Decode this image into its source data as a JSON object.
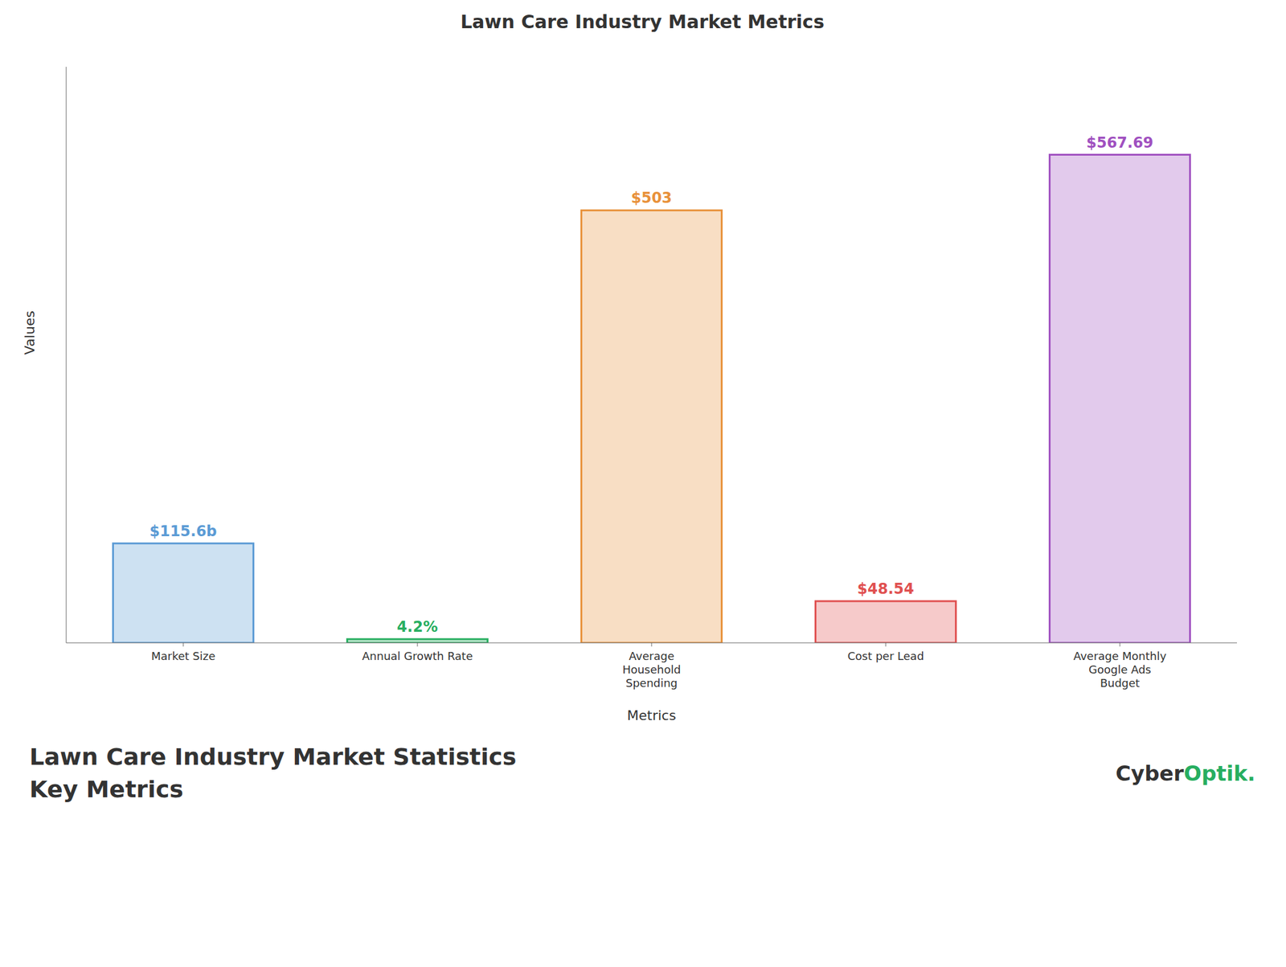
{
  "chart_data": {
    "type": "bar",
    "title": "Lawn Care Industry Market Metrics",
    "x_label": "Metrics",
    "y_label": "Values",
    "categories": [
      "Market Size",
      "Annual Growth Rate",
      "Average\nHousehold\nSpending",
      "Cost per Lead",
      "Average Monthly\nGoogle Ads\nBudget"
    ],
    "values": [
      115.6,
      4.2,
      503,
      48.54,
      567.69
    ],
    "value_labels": [
      "$115.6b",
      "4.2%",
      "$503",
      "$48.54",
      "$567.69"
    ],
    "data_labels": true,
    "colors": [
      "#5b9bd5",
      "#27ae60",
      "#e8913a",
      "#e05050",
      "#a050c0"
    ],
    "ylim": [
      0,
      670
    ],
    "tick_labels": "x",
    "grid": false,
    "annotations": [
      "Lawn Care Industry Market Statistics",
      "Key Metrics",
      "Cyber",
      "Optik."
    ]
  }
}
